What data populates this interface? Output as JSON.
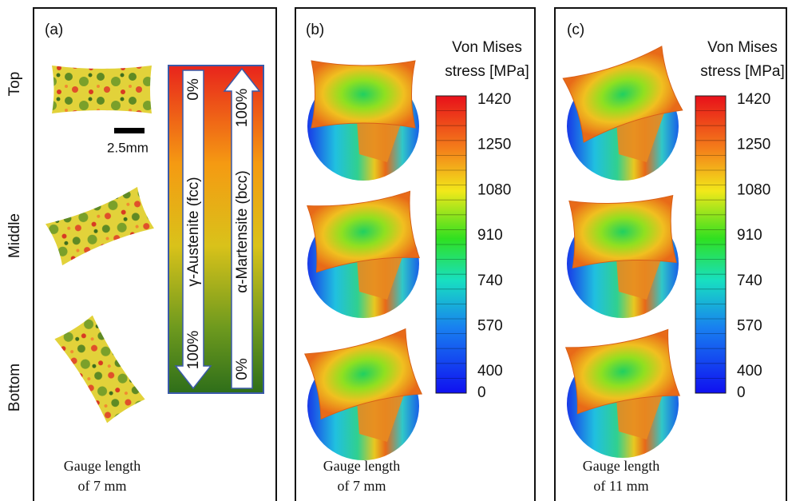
{
  "panels": [
    {
      "label": "(a)",
      "rows": [
        "Top",
        "Middle",
        "Bottom"
      ],
      "scale_bar": "2.5mm",
      "down_arrow": {
        "start": "0%",
        "label": "γ-Austenite (fcc)",
        "end": "100%"
      },
      "up_arrow": {
        "start": "0%",
        "label": "α-Martensite (bcc)",
        "end": "100%"
      },
      "caption": [
        "Gauge length",
        "of 7 mm"
      ]
    },
    {
      "label": "(b)",
      "colorbar": {
        "title": [
          "Von Mises",
          "stress [MPa]"
        ],
        "ticks": [
          1420,
          1250,
          1080,
          910,
          740,
          570,
          400,
          0
        ]
      },
      "caption": [
        "Gauge length",
        "of 7 mm"
      ]
    },
    {
      "label": "(c)",
      "colorbar": {
        "title": [
          "Von Mises",
          "stress [MPa]"
        ],
        "ticks": [
          1420,
          1250,
          1080,
          910,
          740,
          570,
          400,
          0
        ]
      },
      "caption": [
        "Gauge length",
        "of 11 mm"
      ]
    }
  ]
}
